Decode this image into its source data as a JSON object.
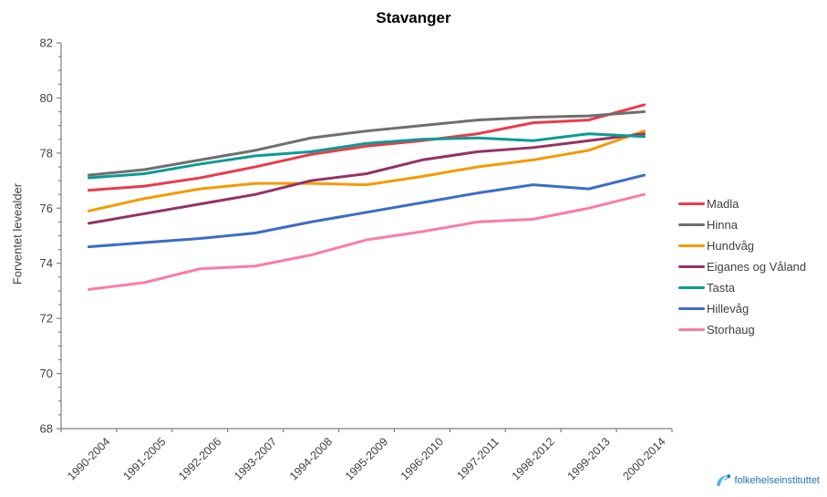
{
  "title": "Stavanger",
  "footer": {
    "logo_text": "folkehelseinstituttet"
  },
  "colors": {
    "axis": "#808080",
    "tick_text": "#404040",
    "title_text": "#000000",
    "logo_blue": "#1b75bb",
    "logo_light_blue": "#49b8e5"
  },
  "chart_data": {
    "type": "line",
    "title": "Stavanger",
    "xlabel": "",
    "ylabel": "Forventet levealder",
    "ylim": [
      68,
      82
    ],
    "y_major_step": 2,
    "y_minor_step": 0.5,
    "grid": false,
    "legend_position": "right",
    "categories": [
      "1990-2004",
      "1991-2005",
      "1992-2006",
      "1993-2007",
      "1994-2008",
      "1995-2009",
      "1996-2010",
      "1997-2011",
      "1998-2012",
      "1999-2013",
      "2000-2014"
    ],
    "series": [
      {
        "name": "Madla",
        "color": "#ec3a4c",
        "values": [
          76.65,
          76.8,
          77.1,
          77.5,
          77.95,
          78.25,
          78.45,
          78.7,
          79.1,
          79.2,
          79.75
        ]
      },
      {
        "name": "Hinna",
        "color": "#6f6f6f",
        "values": [
          77.2,
          77.4,
          77.75,
          78.1,
          78.55,
          78.8,
          79.0,
          79.2,
          79.3,
          79.35,
          79.5
        ]
      },
      {
        "name": "Hundvåg",
        "color": "#f59b00",
        "values": [
          75.9,
          76.35,
          76.7,
          76.9,
          76.9,
          76.85,
          77.15,
          77.5,
          77.75,
          78.1,
          78.8
        ]
      },
      {
        "name": "Eiganes og Våland",
        "color": "#943264",
        "values": [
          75.45,
          75.8,
          76.15,
          76.5,
          77.0,
          77.25,
          77.75,
          78.05,
          78.2,
          78.45,
          78.7
        ]
      },
      {
        "name": "Tasta",
        "color": "#0b9b93",
        "values": [
          77.1,
          77.25,
          77.6,
          77.9,
          78.05,
          78.35,
          78.5,
          78.55,
          78.45,
          78.7,
          78.6
        ]
      },
      {
        "name": "Hillevåg",
        "color": "#3d6cc4",
        "values": [
          74.6,
          74.75,
          74.9,
          75.1,
          75.5,
          75.85,
          76.2,
          76.55,
          76.85,
          76.7,
          77.2
        ]
      },
      {
        "name": "Storhaug",
        "color": "#f97da5",
        "values": [
          73.05,
          73.3,
          73.8,
          73.9,
          74.3,
          74.85,
          75.15,
          75.5,
          75.6,
          76.0,
          76.5
        ]
      }
    ]
  }
}
